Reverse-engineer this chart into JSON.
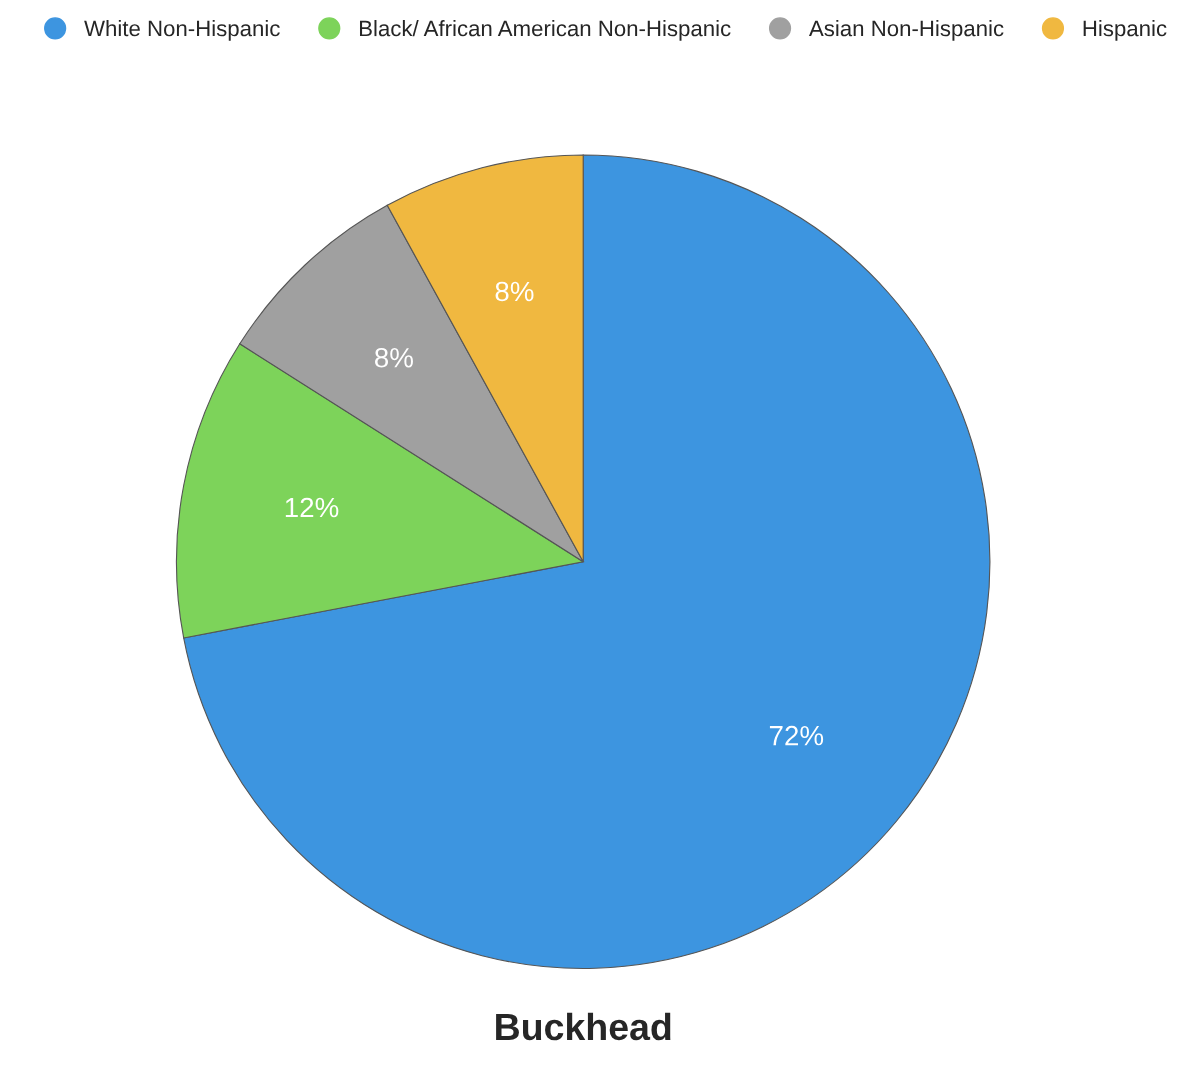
{
  "chart_data": {
    "type": "pie",
    "title": "Buckhead",
    "categories": [
      "White Non-Hispanic",
      "Black/ African American Non-Hispanic",
      "Asian Non-Hispanic",
      "Hispanic"
    ],
    "values": [
      72,
      12,
      8,
      8
    ],
    "colors": [
      "#3d95e0",
      "#7dd35a",
      "#a0a0a0",
      "#f0b840"
    ],
    "value_labels": [
      "72%",
      "12%",
      "8%",
      "8%"
    ],
    "legend": "top"
  }
}
